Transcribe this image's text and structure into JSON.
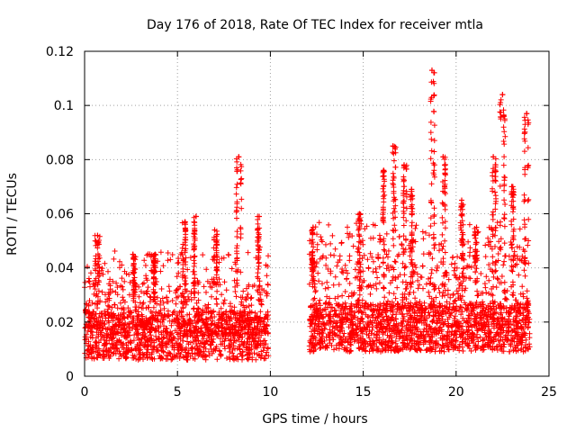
{
  "chart_data": {
    "type": "scatter",
    "title": "Day 176 of 2018, Rate Of TEC Index for receiver mtla",
    "xlabel": "GPS time / hours",
    "ylabel": "ROTI / TECUs",
    "xlim": [
      0,
      25
    ],
    "ylim": [
      0,
      0.12
    ],
    "xticks": [
      0,
      5,
      10,
      15,
      20,
      25
    ],
    "xtick_labels": [
      "0",
      "5",
      "10",
      "15",
      "20",
      "25"
    ],
    "yticks": [
      0,
      0.02,
      0.04,
      0.06,
      0.08,
      0.1,
      0.12
    ],
    "ytick_labels": [
      "0",
      "0.02",
      "0.04",
      "0.06",
      "0.08",
      "0.1",
      "0.12"
    ],
    "grid": true,
    "marker": "+",
    "color": "#ff0000",
    "series": [
      {
        "name": "ROTI",
        "segments": [
          {
            "x_start": 0.0,
            "x_end": 9.9,
            "baseline": 0.015,
            "typical_max": 0.035
          },
          {
            "x_start": 12.1,
            "x_end": 24.0,
            "baseline": 0.018,
            "typical_max": 0.045
          }
        ],
        "peaks": [
          {
            "x": 0.7,
            "y": 0.052
          },
          {
            "x": 2.6,
            "y": 0.045
          },
          {
            "x": 3.8,
            "y": 0.045
          },
          {
            "x": 5.4,
            "y": 0.057
          },
          {
            "x": 6.0,
            "y": 0.059
          },
          {
            "x": 7.0,
            "y": 0.054
          },
          {
            "x": 8.3,
            "y": 0.081
          },
          {
            "x": 9.4,
            "y": 0.059
          },
          {
            "x": 12.3,
            "y": 0.055
          },
          {
            "x": 14.8,
            "y": 0.06
          },
          {
            "x": 16.1,
            "y": 0.076
          },
          {
            "x": 16.6,
            "y": 0.085
          },
          {
            "x": 17.2,
            "y": 0.078
          },
          {
            "x": 17.6,
            "y": 0.069
          },
          {
            "x": 18.7,
            "y": 0.113
          },
          {
            "x": 19.3,
            "y": 0.081
          },
          {
            "x": 20.3,
            "y": 0.065
          },
          {
            "x": 21.1,
            "y": 0.055
          },
          {
            "x": 22.0,
            "y": 0.081
          },
          {
            "x": 22.5,
            "y": 0.104
          },
          {
            "x": 23.0,
            "y": 0.07
          },
          {
            "x": 23.8,
            "y": 0.097
          }
        ]
      }
    ]
  }
}
